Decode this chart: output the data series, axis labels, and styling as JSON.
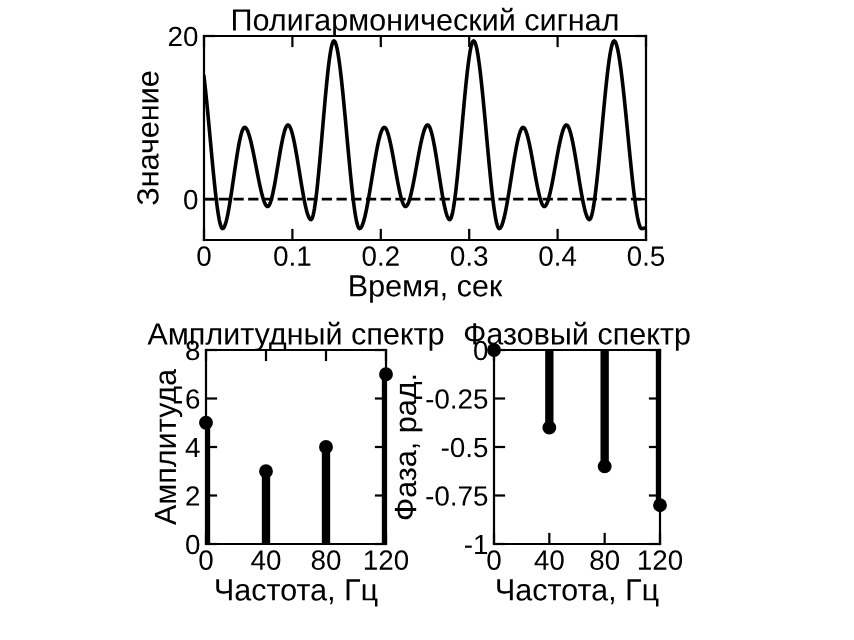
{
  "chart_data": [
    {
      "type": "line",
      "title": "Полигармонический сигнал",
      "xlabel": "Время, сек",
      "ylabel": "Значение",
      "series": [
        {
          "color": "#000000",
          "x": [
            0,
            0.021,
            0.046,
            0.072,
            0.095,
            0.121,
            0.147,
            0.176,
            0.204,
            0.228,
            0.253,
            0.278,
            0.305,
            0.334,
            0.361,
            0.385,
            0.41,
            0.436,
            0.464,
            0.495,
            0.5
          ],
          "values": [
            15,
            -3.6,
            8.8,
            -0.9,
            9.1,
            -2.5,
            19.4,
            -3.6,
            8.8,
            -0.9,
            9.1,
            -2.5,
            19.4,
            -3.6,
            8.8,
            -0.9,
            9.1,
            -2.5,
            19.4,
            -3.6,
            -3.5
          ]
        }
      ],
      "xlim": [
        0,
        0.5
      ],
      "xticks": [
        0,
        0.1,
        0.2,
        0.3,
        0.4,
        0.5
      ],
      "ylim": [
        -5,
        20
      ],
      "yticks": [
        0,
        20
      ],
      "ref_lines": [
        {
          "axis": "y",
          "value": 0,
          "color": "#000000",
          "line_style": "dashed"
        }
      ],
      "line_style": "solid",
      "marker": "none",
      "grid": false,
      "legend": false
    },
    {
      "type": "lollipop",
      "title": "Амплитудный спектр",
      "xlabel": "Частота, Гц",
      "ylabel": "Амплитуда",
      "series": [
        {
          "color": "#000000",
          "x": [
            0,
            40,
            80,
            120
          ],
          "values": [
            5,
            3,
            4,
            7
          ]
        }
      ],
      "xlim": [
        0,
        120
      ],
      "xticks": [
        0,
        40,
        80,
        120
      ],
      "ylim": [
        0,
        8
      ],
      "yticks": [
        0,
        2,
        4,
        6,
        8
      ],
      "marker": "circle",
      "grid": false,
      "legend": false
    },
    {
      "type": "lollipop",
      "title": "Фазовый спектр",
      "xlabel": "Частота, Гц",
      "ylabel": "Фаза, рад.",
      "series": [
        {
          "color": "#000000",
          "x": [
            0,
            40,
            80,
            120
          ],
          "values": [
            0,
            -0.4,
            -0.6,
            -0.8
          ]
        }
      ],
      "xlim": [
        0,
        120
      ],
      "xticks": [
        0,
        40,
        80,
        120
      ],
      "ylim": [
        -1,
        0
      ],
      "yticks": [
        0,
        -0.25,
        -0.5,
        -0.75,
        -1
      ],
      "marker": "circle",
      "grid": false,
      "legend": false
    }
  ]
}
